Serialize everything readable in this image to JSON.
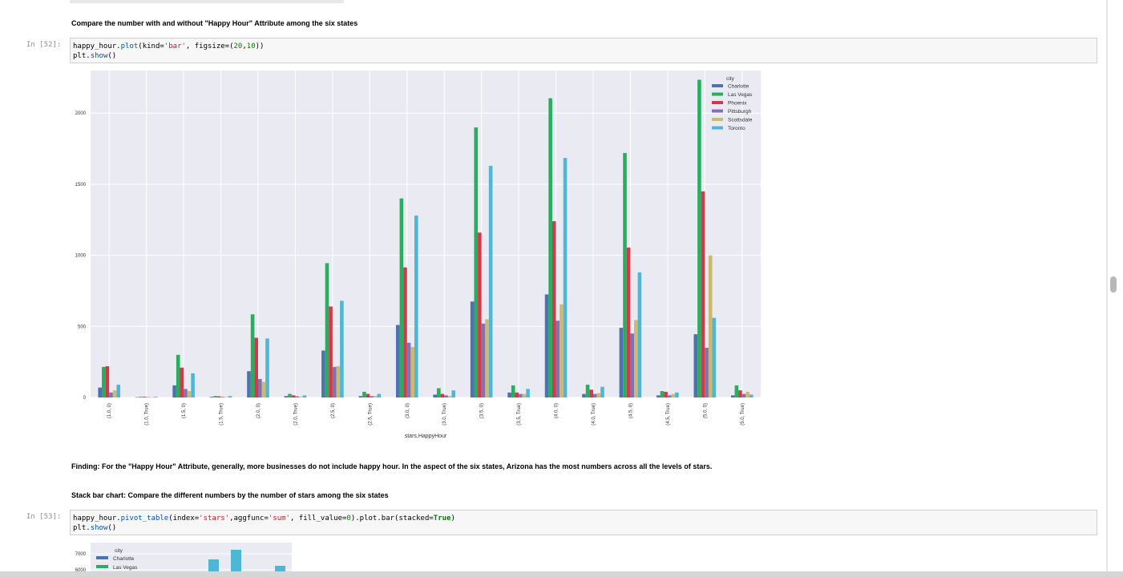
{
  "cells": {
    "md1": "Compare the number with and without \"Happy Hour\" Attribute among the six states",
    "prompt52": "In [52]:",
    "code52": {
      "l1_a": "happy_hour.",
      "l1_fn": "plot",
      "l1_b": "(kind=",
      "l1_str": "'bar'",
      "l1_c": ", figsize=(",
      "l1_n1": "20",
      "l1_d": ",",
      "l1_n2": "10",
      "l1_e": "))",
      "l2_a": "plt.",
      "l2_fn": "show",
      "l2_b": "()"
    },
    "finding": "Finding: For the \"Happy Hour\" Attribute, generally, more businesses do not include happy hour. In the aspect of the six states, Arizona has the most numbers across all the levels of stars.",
    "md2": "Stack bar chart: Compare the different numbers by the number of stars among the six states",
    "prompt53": "In [53]:",
    "code53": {
      "l1_a": "happy_hour.",
      "l1_fn": "pivot_table",
      "l1_b": "(index=",
      "l1_s1": "'stars'",
      "l1_c": ",aggfunc=",
      "l1_s2": "'sum'",
      "l1_d": ", fill_value=",
      "l1_n": "0",
      "l1_e": ").plot.bar(stacked=",
      "l1_kw": "True",
      "l1_f": ")",
      "l2_a": "plt.",
      "l2_fn": "show",
      "l2_b": "()"
    }
  },
  "chart_data": [
    {
      "type": "bar",
      "xlabel": "stars,HappyHour",
      "legend_title": "city",
      "legend_position": "top-right",
      "grid": true,
      "ylim": [
        0,
        2300
      ],
      "yticks": [
        0,
        500,
        1000,
        1500,
        2000
      ],
      "categories": [
        "(1.0, 0)",
        "(1.0, True)",
        "(1.5, 0)",
        "(1.5, True)",
        "(2.0, 0)",
        "(2.0, True)",
        "(2.5, 0)",
        "(2.5, True)",
        "(3.0, 0)",
        "(3.0, True)",
        "(3.5, 0)",
        "(3.5, True)",
        "(4.0, 0)",
        "(4.0, True)",
        "(4.5, 0)",
        "(4.5, True)",
        "(5.0, 0)",
        "(5.0, True)"
      ],
      "series": [
        {
          "name": "Charlotte",
          "color": "#4c72b0",
          "values": [
            70,
            2,
            85,
            5,
            185,
            10,
            330,
            10,
            510,
            20,
            675,
            35,
            725,
            25,
            490,
            15,
            445,
            15
          ]
        },
        {
          "name": "Las Vegas",
          "color": "#2aad5f",
          "values": [
            215,
            5,
            300,
            10,
            585,
            25,
            945,
            40,
            1400,
            65,
            1900,
            85,
            2105,
            90,
            1720,
            45,
            2235,
            85
          ]
        },
        {
          "name": "Phoenix",
          "color": "#cf3b4b",
          "values": [
            220,
            5,
            210,
            8,
            420,
            15,
            640,
            25,
            915,
            25,
            1160,
            35,
            1240,
            55,
            1055,
            40,
            1450,
            50
          ]
        },
        {
          "name": "Pittsburgh",
          "color": "#8172b2",
          "values": [
            35,
            2,
            60,
            4,
            130,
            8,
            215,
            10,
            385,
            15,
            520,
            25,
            540,
            25,
            450,
            15,
            350,
            25
          ]
        },
        {
          "name": "Scottsdale",
          "color": "#ccb974",
          "values": [
            50,
            2,
            45,
            3,
            110,
            5,
            220,
            10,
            355,
            10,
            550,
            25,
            655,
            30,
            545,
            25,
            1000,
            40
          ]
        },
        {
          "name": "Toronto",
          "color": "#4fb7d6",
          "values": [
            90,
            5,
            170,
            10,
            415,
            15,
            680,
            25,
            1280,
            50,
            1630,
            60,
            1685,
            75,
            880,
            35,
            560,
            20
          ]
        }
      ]
    },
    {
      "type": "bar",
      "stacked": true,
      "legend_title": "city",
      "legend_position": "top-left",
      "yticks": [
        6000,
        7000
      ],
      "series": [
        {
          "name": "Charlotte",
          "color": "#4c72b0"
        },
        {
          "name": "Las Vegas",
          "color": "#2aad5f"
        }
      ]
    }
  ]
}
